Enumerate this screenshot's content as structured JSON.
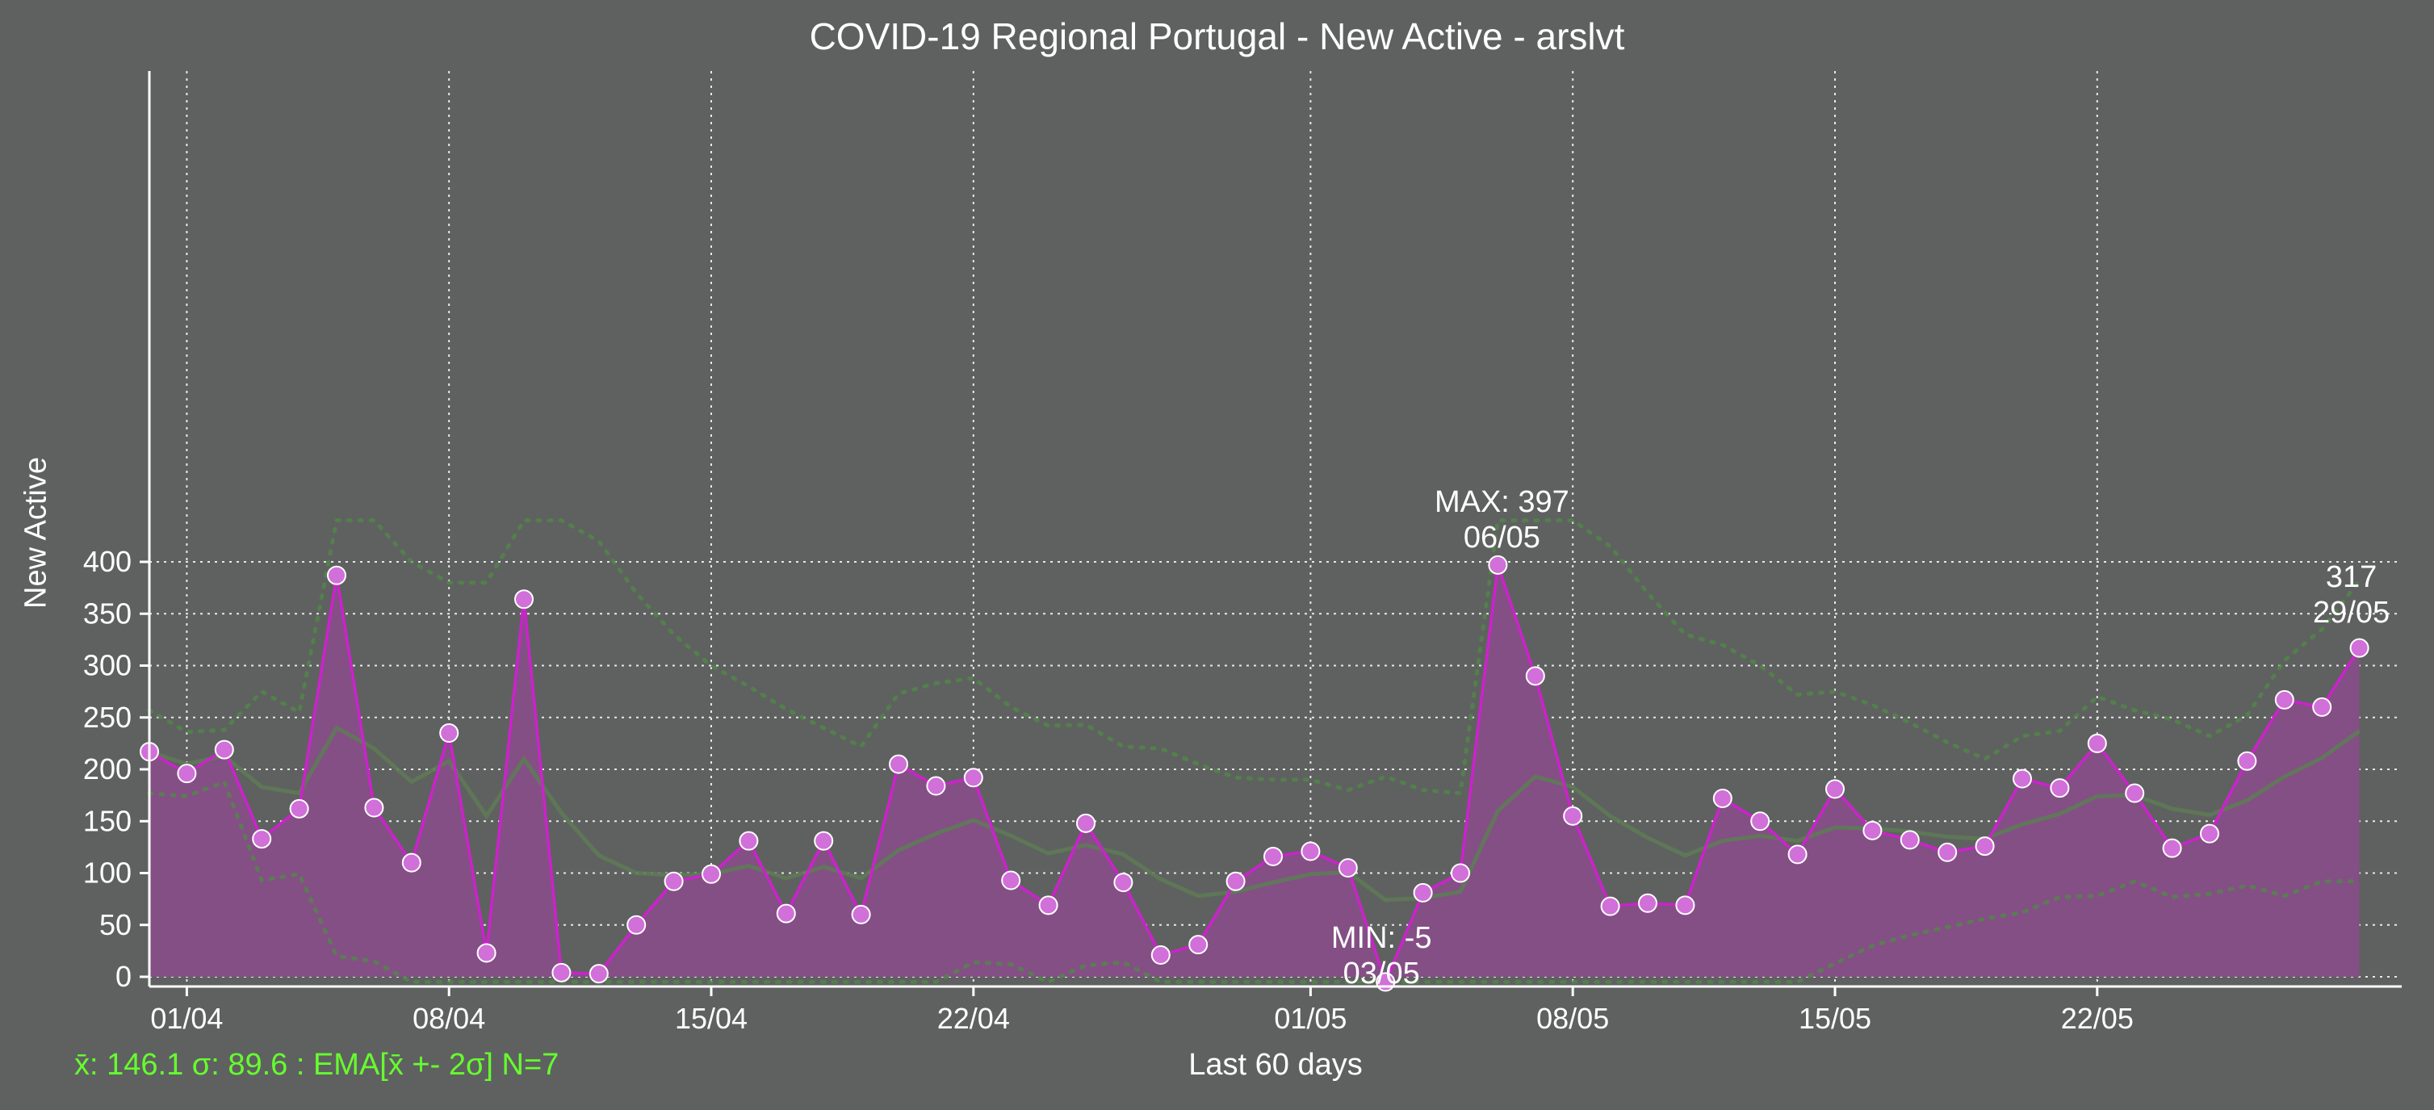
{
  "chart_data": {
    "type": "line",
    "title": "COVID-19 Regional Portugal - New Active - arslvt",
    "xlabel": "Last 60 days",
    "ylabel": "New Active",
    "stats_text": "x̄: 146.1 σ: 89.6 : EMA[x̄ +- 2σ] N=7",
    "ylim": [
      -5,
      440
    ],
    "yticks": [
      0,
      50,
      100,
      150,
      200,
      250,
      300,
      350,
      400
    ],
    "x_tick_labels": [
      "01/04",
      "08/04",
      "15/04",
      "22/04",
      "01/05",
      "08/05",
      "15/05",
      "22/05"
    ],
    "grid": true,
    "x": [
      "31/03",
      "01/04",
      "02/04",
      "03/04",
      "04/04",
      "05/04",
      "06/04",
      "07/04",
      "08/04",
      "09/04",
      "10/04",
      "11/04",
      "12/04",
      "13/04",
      "14/04",
      "15/04",
      "16/04",
      "17/04",
      "18/04",
      "19/04",
      "20/04",
      "21/04",
      "22/04",
      "23/04",
      "24/04",
      "25/04",
      "26/04",
      "27/04",
      "28/04",
      "29/04",
      "30/04",
      "01/05",
      "02/05",
      "03/05",
      "04/05",
      "05/05",
      "06/05",
      "07/05",
      "08/05",
      "09/05",
      "10/05",
      "11/05",
      "12/05",
      "13/05",
      "14/05",
      "15/05",
      "16/05",
      "17/05",
      "18/05",
      "19/05",
      "20/05",
      "21/05",
      "22/05",
      "23/05",
      "24/05",
      "25/05",
      "26/05",
      "27/05",
      "28/05",
      "29/05"
    ],
    "series": [
      {
        "values": [
          217,
          196,
          219,
          133,
          162,
          387,
          163,
          110,
          235,
          23,
          364,
          4,
          3,
          50,
          92,
          99,
          131,
          61,
          131,
          60,
          205,
          184,
          192,
          93,
          69,
          148,
          91,
          21,
          31,
          92,
          116,
          121,
          105,
          -5,
          81,
          100,
          397,
          290,
          155,
          68,
          71,
          69,
          172,
          150,
          118,
          181,
          141,
          132,
          120,
          126,
          191,
          182,
          225,
          177,
          124,
          138,
          208,
          267,
          260,
          317
        ]
      },
      {
        "values": [
          217,
          205,
          213,
          183,
          177,
          240,
          220,
          188,
          208,
          155,
          210,
          158,
          117,
          100,
          98,
          99,
          107,
          95,
          106,
          95,
          122,
          138,
          151,
          136,
          119,
          127,
          118,
          94,
          78,
          82,
          91,
          99,
          101,
          74,
          76,
          82,
          160,
          193,
          183,
          155,
          134,
          117,
          131,
          136,
          131,
          144,
          143,
          140,
          135,
          133,
          147,
          157,
          174,
          175,
          162,
          156,
          170,
          193,
          211,
          237
        ]
      },
      {
        "values": [
          257,
          236,
          238,
          275,
          255,
          440,
          440,
          400,
          380,
          380,
          440,
          440,
          420,
          370,
          330,
          300,
          280,
          258,
          240,
          222,
          273,
          283,
          288,
          260,
          242,
          243,
          222,
          220,
          205,
          192,
          190,
          190,
          180,
          193,
          180,
          177,
          440,
          440,
          440,
          415,
          370,
          330,
          320,
          300,
          272,
          275,
          262,
          245,
          226,
          210,
          232,
          237,
          270,
          257,
          248,
          232,
          252,
          305,
          335,
          382
        ]
      },
      {
        "values": [
          177,
          174,
          188,
          93,
          99,
          20,
          15,
          -5,
          -5,
          -5,
          -5,
          -5,
          -5,
          -5,
          -5,
          -5,
          -5,
          -5,
          -5,
          -5,
          -5,
          -5,
          14,
          12,
          -5,
          11,
          14,
          -5,
          -5,
          -5,
          -5,
          -5,
          -5,
          -5,
          -5,
          -5,
          -5,
          -5,
          -5,
          -5,
          -5,
          -5,
          -5,
          -5,
          -5,
          13,
          30,
          40,
          48,
          56,
          62,
          77,
          78,
          92,
          77,
          80,
          88,
          78,
          92,
          92
        ]
      }
    ],
    "colors": {
      "background": "#5f6160",
      "line": "#cc22cc",
      "fill": "#844f85",
      "marker_face": "#d070d8",
      "marker_edge": "#ffffff",
      "ema": "#5e7a56",
      "bounds": "#4f8a46",
      "grid": "#e8e8e8",
      "stats": "#66ff2e"
    },
    "annotations": [
      {
        "label": "MAX: 397",
        "date": "06/05"
      },
      {
        "label": "MIN: -5",
        "date": "03/05"
      },
      {
        "label": "317",
        "date": "29/05"
      }
    ]
  }
}
